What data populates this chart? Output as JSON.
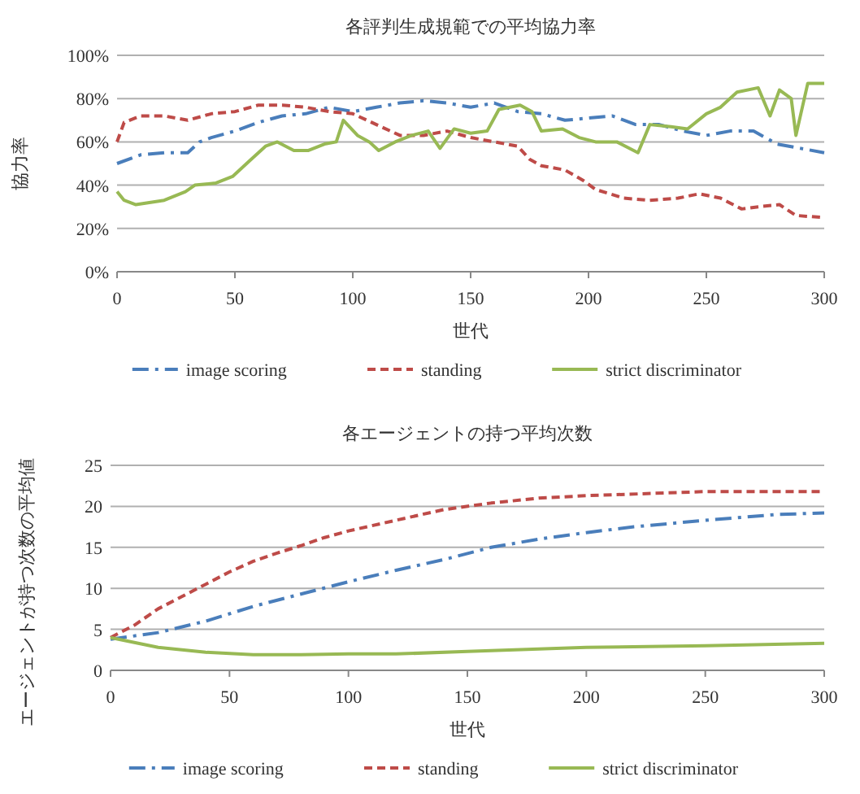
{
  "chart_data": [
    {
      "type": "line",
      "title": "各評判生成規範での平均協力率",
      "xlabel": "世代",
      "ylabel": "協力率",
      "xlim": [
        0,
        300
      ],
      "xticks": [
        0,
        50,
        100,
        150,
        200,
        250,
        300
      ],
      "ylim": [
        0,
        100
      ],
      "yticks": [
        {
          "value": 0,
          "label": "0%"
        },
        {
          "value": 20,
          "label": "20%"
        },
        {
          "value": 40,
          "label": "40%"
        },
        {
          "value": 60,
          "label": "60%"
        },
        {
          "value": 80,
          "label": "80%"
        },
        {
          "value": 100,
          "label": "100%"
        }
      ],
      "grid": "y",
      "legend": "bottom",
      "series": [
        {
          "name": "image scoring",
          "color": "#4a7ebb",
          "line_style": "dashdot",
          "x": [
            0,
            10,
            20,
            30,
            35,
            40,
            50,
            60,
            70,
            80,
            90,
            100,
            110,
            120,
            130,
            140,
            150,
            160,
            170,
            180,
            190,
            200,
            210,
            220,
            230,
            240,
            250,
            260,
            270,
            280,
            290,
            300
          ],
          "values": [
            50,
            54,
            55,
            55,
            60,
            62,
            65,
            69,
            72,
            73,
            76,
            74,
            76,
            78,
            79,
            78,
            76,
            78,
            74,
            73,
            70,
            71,
            72,
            68,
            68,
            65,
            63,
            65,
            65,
            59,
            57,
            55
          ]
        },
        {
          "name": "standing",
          "color": "#be4b48",
          "line_style": "dashed",
          "x": [
            0,
            3,
            10,
            20,
            30,
            40,
            50,
            60,
            70,
            80,
            90,
            100,
            110,
            120,
            130,
            140,
            150,
            160,
            170,
            175,
            180,
            190,
            198,
            203,
            215,
            226,
            238,
            247,
            256,
            265,
            272,
            281,
            288,
            300
          ],
          "values": [
            60,
            69,
            72,
            72,
            70,
            73,
            74,
            77,
            77,
            76,
            74,
            73,
            68,
            63,
            63,
            65,
            62,
            60,
            58,
            52,
            49,
            47,
            42,
            38,
            34,
            33,
            34,
            36,
            34,
            29,
            30,
            31,
            26,
            25
          ]
        },
        {
          "name": "strict discriminator",
          "color": "#98b954",
          "line_style": "solid",
          "x": [
            0,
            3,
            8,
            20,
            29,
            33,
            42,
            49,
            56,
            63,
            68,
            75,
            81,
            88,
            93,
            96,
            102,
            107,
            111,
            118,
            125,
            132,
            137,
            143,
            150,
            157,
            162,
            171,
            176,
            180,
            189,
            196,
            203,
            212,
            221,
            226,
            235,
            242,
            250,
            256,
            263,
            272,
            277,
            281,
            286,
            288,
            293,
            300
          ],
          "values": [
            37,
            33,
            31,
            33,
            37,
            40,
            41,
            44,
            51,
            58,
            60,
            56,
            56,
            59,
            60,
            70,
            63,
            60,
            56,
            60,
            63,
            65,
            57,
            66,
            64,
            65,
            75,
            77,
            74,
            65,
            66,
            62,
            60,
            60,
            55,
            68,
            67,
            66,
            73,
            76,
            83,
            85,
            72,
            84,
            80,
            63,
            87,
            87
          ]
        }
      ]
    },
    {
      "type": "line",
      "title": "各エージェントの持つ平均次数",
      "xlabel": "世代",
      "ylabel": "エージェントが持つ次数の平均値",
      "xlim": [
        0,
        300
      ],
      "xticks": [
        0,
        50,
        100,
        150,
        200,
        250,
        300
      ],
      "ylim": [
        0,
        25
      ],
      "yticks": [
        0,
        5,
        10,
        15,
        20,
        25
      ],
      "grid": "y",
      "legend": "bottom",
      "series": [
        {
          "name": "image scoring",
          "color": "#4a7ebb",
          "line_style": "dashdot",
          "x": [
            0,
            20,
            40,
            60,
            80,
            100,
            120,
            140,
            160,
            180,
            200,
            220,
            250,
            280,
            300
          ],
          "values": [
            3.8,
            4.6,
            6,
            7.8,
            9.3,
            10.8,
            12.2,
            13.5,
            15,
            16,
            16.8,
            17.5,
            18.3,
            19,
            19.2
          ]
        },
        {
          "name": "standing",
          "color": "#be4b48",
          "line_style": "dashed",
          "x": [
            0,
            10,
            20,
            30,
            40,
            50,
            60,
            70,
            80,
            90,
            100,
            120,
            140,
            160,
            180,
            200,
            250,
            300
          ],
          "values": [
            4,
            5.5,
            7.5,
            9,
            10.5,
            12,
            13.3,
            14.3,
            15.2,
            16.2,
            17,
            18.3,
            19.6,
            20.4,
            21,
            21.3,
            21.8,
            21.8
          ]
        },
        {
          "name": "strict discriminator",
          "color": "#98b954",
          "line_style": "solid",
          "x": [
            0,
            20,
            40,
            60,
            80,
            100,
            120,
            150,
            200,
            250,
            300
          ],
          "values": [
            4,
            2.8,
            2.2,
            1.9,
            1.9,
            2,
            2,
            2.3,
            2.8,
            3,
            3.3
          ]
        }
      ]
    }
  ]
}
